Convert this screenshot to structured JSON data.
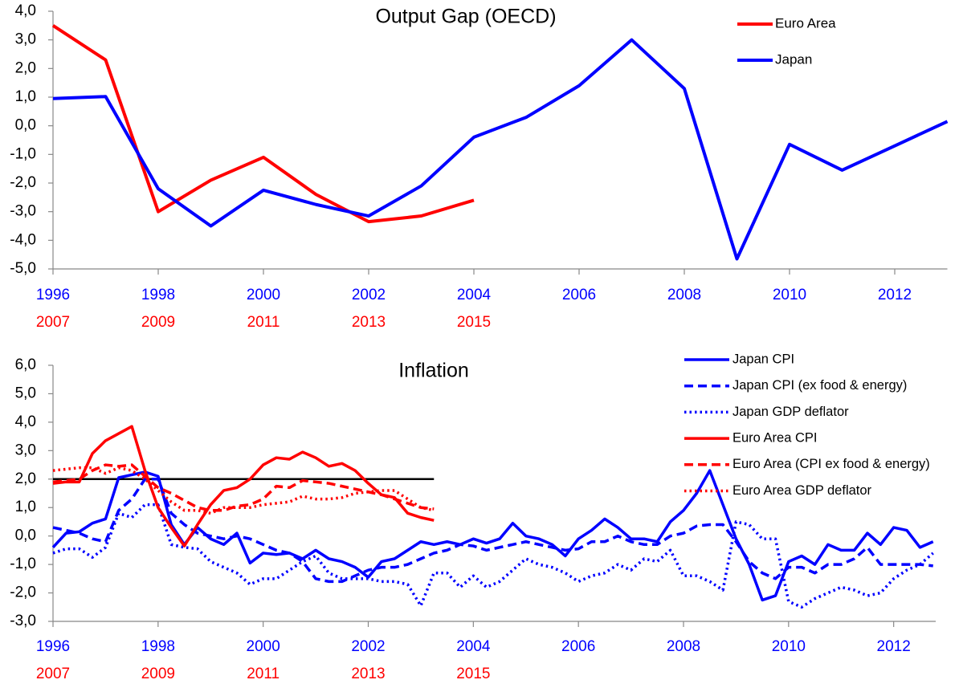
{
  "chart_data": [
    {
      "type": "line",
      "title": "Output Gap (OECD)",
      "x": [
        1996,
        1997,
        1998,
        1999,
        2000,
        2001,
        2002,
        2003,
        2004,
        2005,
        2006,
        2007,
        2008,
        2009,
        2010,
        2011,
        2012,
        2013
      ],
      "xlim": [
        1996,
        2013
      ],
      "xticks": [
        1996,
        1998,
        2000,
        2002,
        2004,
        2006,
        2008,
        2010,
        2012
      ],
      "xtick_color": "#0000ff",
      "x2lim": [
        2007,
        2024
      ],
      "x2ticks": [
        2007,
        2009,
        2011,
        2013,
        2015
      ],
      "x2tick_color": "#ff0000",
      "ylim": [
        -5,
        4
      ],
      "yticks": [
        {
          "value": 4,
          "label": "4,0"
        },
        {
          "value": 3,
          "label": "3,0"
        },
        {
          "value": 2,
          "label": "2,0"
        },
        {
          "value": 1,
          "label": "1,0"
        },
        {
          "value": 0,
          "label": "0,0"
        },
        {
          "value": -1,
          "label": "-1,0"
        },
        {
          "value": -2,
          "label": "-2,0"
        },
        {
          "value": -3,
          "label": "-3,0"
        },
        {
          "value": -4,
          "label": "-4,0"
        },
        {
          "value": -5,
          "label": "-5,0"
        }
      ],
      "grid": false,
      "legend": "upper right",
      "series": [
        {
          "name": "Euro Area",
          "color": "#ff0000",
          "dash": "solid",
          "xaxis": "x2",
          "x": [
            2007,
            2008,
            2009,
            2010,
            2011,
            2012,
            2013,
            2014,
            2015
          ],
          "values": [
            3.5,
            2.3,
            -3.0,
            -1.9,
            -1.1,
            -2.4,
            -3.35,
            -3.15,
            -2.6
          ]
        },
        {
          "name": "Japan",
          "color": "#0000ff",
          "dash": "solid",
          "values": [
            0.95,
            1.02,
            -2.2,
            -3.5,
            -2.25,
            -2.75,
            -3.15,
            -2.1,
            -0.4,
            0.3,
            1.4,
            3.0,
            1.3,
            -4.65,
            -0.65,
            -1.55,
            -0.7,
            0.15
          ]
        }
      ]
    },
    {
      "type": "line",
      "title": "Inflation",
      "x": [
        1996,
        1996.25,
        1996.5,
        1996.75,
        1997,
        1997.25,
        1997.5,
        1997.75,
        1998,
        1998.25,
        1998.5,
        1998.75,
        1999,
        1999.25,
        1999.5,
        1999.75,
        2000,
        2000.25,
        2000.5,
        2000.75,
        2001,
        2001.25,
        2001.5,
        2001.75,
        2002,
        2002.25,
        2002.5,
        2002.75,
        2003,
        2003.25,
        2003.5,
        2003.75,
        2004,
        2004.25,
        2004.5,
        2004.75,
        2005,
        2005.25,
        2005.5,
        2005.75,
        2006,
        2006.25,
        2006.5,
        2006.75,
        2007,
        2007.25,
        2007.5,
        2007.75,
        2008,
        2008.25,
        2008.5,
        2008.75,
        2009,
        2009.25,
        2009.5,
        2009.75,
        2010,
        2010.25,
        2010.5,
        2010.75,
        2011,
        2011.25,
        2011.5,
        2011.75,
        2012,
        2012.25,
        2012.5,
        2012.75
      ],
      "xlim": [
        1996,
        2012.8
      ],
      "xticks": [
        1996,
        1998,
        2000,
        2002,
        2004,
        2006,
        2008,
        2010,
        2012
      ],
      "xtick_color": "#0000ff",
      "x2lim": [
        2007,
        2023.8
      ],
      "x2ticks": [
        2007,
        2009,
        2011,
        2013,
        2015
      ],
      "x2tick_color": "#ff0000",
      "ylim": [
        -3,
        6
      ],
      "yticks": [
        {
          "value": 6,
          "label": "6,0"
        },
        {
          "value": 5,
          "label": "5,0"
        },
        {
          "value": 4,
          "label": "4,0"
        },
        {
          "value": 3,
          "label": "3,0"
        },
        {
          "value": 2,
          "label": "2,0"
        },
        {
          "value": 1,
          "label": "1,0"
        },
        {
          "value": 0,
          "label": "0,0"
        },
        {
          "value": -1,
          "label": "-1,0"
        },
        {
          "value": -2,
          "label": "-2,0"
        },
        {
          "value": -3,
          "label": "-3,0"
        }
      ],
      "grid": false,
      "legend": "upper right",
      "target_line": {
        "value": 2,
        "x": [
          1996,
          2003.25
        ],
        "color": "#000000"
      },
      "series": [
        {
          "name": "Japan CPI",
          "color": "#0000ff",
          "dash": "solid",
          "values": [
            -0.4,
            0.1,
            0.15,
            0.45,
            0.6,
            2.05,
            2.15,
            2.25,
            2.1,
            0.4,
            -0.3,
            0.3,
            -0.1,
            -0.3,
            0.1,
            -0.95,
            -0.6,
            -0.65,
            -0.6,
            -0.8,
            -0.5,
            -0.8,
            -0.9,
            -1.1,
            -1.45,
            -0.9,
            -0.8,
            -0.5,
            -0.2,
            -0.3,
            -0.2,
            -0.3,
            -0.1,
            -0.25,
            -0.1,
            0.45,
            0.0,
            -0.1,
            -0.3,
            -0.7,
            -0.1,
            0.2,
            0.6,
            0.3,
            -0.1,
            -0.1,
            -0.2,
            0.5,
            0.9,
            1.5,
            2.3,
            1.1,
            -0.1,
            -1.0,
            -2.25,
            -2.1,
            -0.9,
            -0.7,
            -1.0,
            -0.3,
            -0.5,
            -0.5,
            0.1,
            -0.3,
            0.3,
            0.2,
            -0.4,
            -0.2
          ]
        },
        {
          "name": "Japan CPI (ex food & energy)",
          "color": "#0000ff",
          "dash": "dashed",
          "values": [
            0.3,
            0.2,
            0.1,
            -0.1,
            -0.2,
            0.9,
            1.3,
            2.0,
            2.0,
            0.8,
            0.4,
            0.1,
            0.0,
            -0.1,
            0.0,
            -0.1,
            -0.3,
            -0.5,
            -0.6,
            -0.9,
            -1.5,
            -1.6,
            -1.6,
            -1.4,
            -1.2,
            -1.1,
            -1.1,
            -1.0,
            -0.8,
            -0.6,
            -0.5,
            -0.3,
            -0.35,
            -0.5,
            -0.4,
            -0.3,
            -0.2,
            -0.3,
            -0.4,
            -0.5,
            -0.45,
            -0.2,
            -0.2,
            0.0,
            -0.2,
            -0.3,
            -0.3,
            0.0,
            0.1,
            0.35,
            0.4,
            0.4,
            -0.2,
            -0.9,
            -1.3,
            -1.5,
            -1.1,
            -1.1,
            -1.3,
            -1.0,
            -1.0,
            -0.8,
            -0.4,
            -1.0,
            -1.0,
            -1.0,
            -1.0,
            -1.05
          ]
        },
        {
          "name": "Japan GDP deflator",
          "color": "#0000ff",
          "dash": "dotted",
          "values": [
            -0.6,
            -0.45,
            -0.45,
            -0.75,
            -0.4,
            0.8,
            0.65,
            1.1,
            1.1,
            -0.3,
            -0.4,
            -0.45,
            -0.9,
            -1.1,
            -1.3,
            -1.7,
            -1.5,
            -1.5,
            -1.2,
            -0.9,
            -0.7,
            -1.3,
            -1.5,
            -1.5,
            -1.5,
            -1.6,
            -1.6,
            -1.7,
            -2.45,
            -1.3,
            -1.3,
            -1.8,
            -1.4,
            -1.8,
            -1.6,
            -1.2,
            -0.8,
            -1.0,
            -1.1,
            -1.3,
            -1.6,
            -1.4,
            -1.3,
            -1.0,
            -1.2,
            -0.8,
            -0.9,
            -0.5,
            -1.4,
            -1.4,
            -1.6,
            -1.9,
            0.5,
            0.4,
            -0.1,
            -0.1,
            -2.3,
            -2.5,
            -2.2,
            -2.0,
            -1.8,
            -1.9,
            -2.1,
            -2.0,
            -1.5,
            -1.2,
            -1.0,
            -0.6
          ]
        },
        {
          "name": "Euro Area CPI",
          "color": "#ff0000",
          "dash": "solid",
          "xaxis": "x2",
          "x": [
            2007,
            2007.25,
            2007.5,
            2007.75,
            2008,
            2008.25,
            2008.5,
            2008.75,
            2009,
            2009.25,
            2009.5,
            2009.75,
            2010,
            2010.25,
            2010.5,
            2010.75,
            2011,
            2011.25,
            2011.5,
            2011.75,
            2012,
            2012.25,
            2012.5,
            2012.75,
            2013,
            2013.25,
            2013.5,
            2013.75,
            2014,
            2014.25
          ],
          "values": [
            1.85,
            1.9,
            1.9,
            2.9,
            3.35,
            3.6,
            3.85,
            2.3,
            1.0,
            0.3,
            -0.35,
            0.4,
            1.1,
            1.6,
            1.7,
            2.0,
            2.5,
            2.75,
            2.7,
            2.95,
            2.75,
            2.45,
            2.55,
            2.3,
            1.85,
            1.45,
            1.35,
            0.8,
            0.65,
            0.55
          ]
        },
        {
          "name": "Euro Area (CPI ex food & energy)",
          "color": "#ff0000",
          "dash": "dashed",
          "xaxis": "x2",
          "x": [
            2007,
            2007.25,
            2007.5,
            2007.75,
            2008,
            2008.25,
            2008.5,
            2008.75,
            2009,
            2009.25,
            2009.5,
            2009.75,
            2010,
            2010.25,
            2010.5,
            2010.75,
            2011,
            2011.25,
            2011.5,
            2011.75,
            2012,
            2012.25,
            2012.5,
            2012.75,
            2013,
            2013.25,
            2013.5,
            2013.75,
            2014,
            2014.25
          ],
          "values": [
            1.9,
            1.95,
            2.0,
            2.3,
            2.5,
            2.45,
            2.5,
            2.1,
            1.7,
            1.5,
            1.25,
            1.0,
            0.9,
            0.9,
            1.05,
            1.1,
            1.3,
            1.75,
            1.7,
            1.95,
            1.9,
            1.85,
            1.75,
            1.65,
            1.55,
            1.45,
            1.3,
            1.15,
            1.0,
            0.95
          ]
        },
        {
          "name": "Euro Area GDP deflator",
          "color": "#ff0000",
          "dash": "dotted",
          "xaxis": "x2",
          "x": [
            2007,
            2007.25,
            2007.5,
            2007.75,
            2008,
            2008.25,
            2008.5,
            2008.75,
            2009,
            2009.25,
            2009.5,
            2009.75,
            2010,
            2010.25,
            2010.5,
            2010.75,
            2011,
            2011.25,
            2011.5,
            2011.75,
            2012,
            2012.25,
            2012.5,
            2012.75,
            2013,
            2013.25,
            2013.5,
            2013.75,
            2014,
            2014.25
          ],
          "values": [
            2.3,
            2.35,
            2.4,
            2.4,
            2.2,
            2.4,
            2.3,
            2.0,
            1.6,
            1.2,
            0.9,
            0.9,
            0.8,
            1.0,
            1.0,
            1.0,
            1.1,
            1.15,
            1.2,
            1.4,
            1.3,
            1.3,
            1.35,
            1.5,
            1.55,
            1.6,
            1.6,
            1.3,
            1.0,
            0.9
          ]
        }
      ]
    }
  ]
}
